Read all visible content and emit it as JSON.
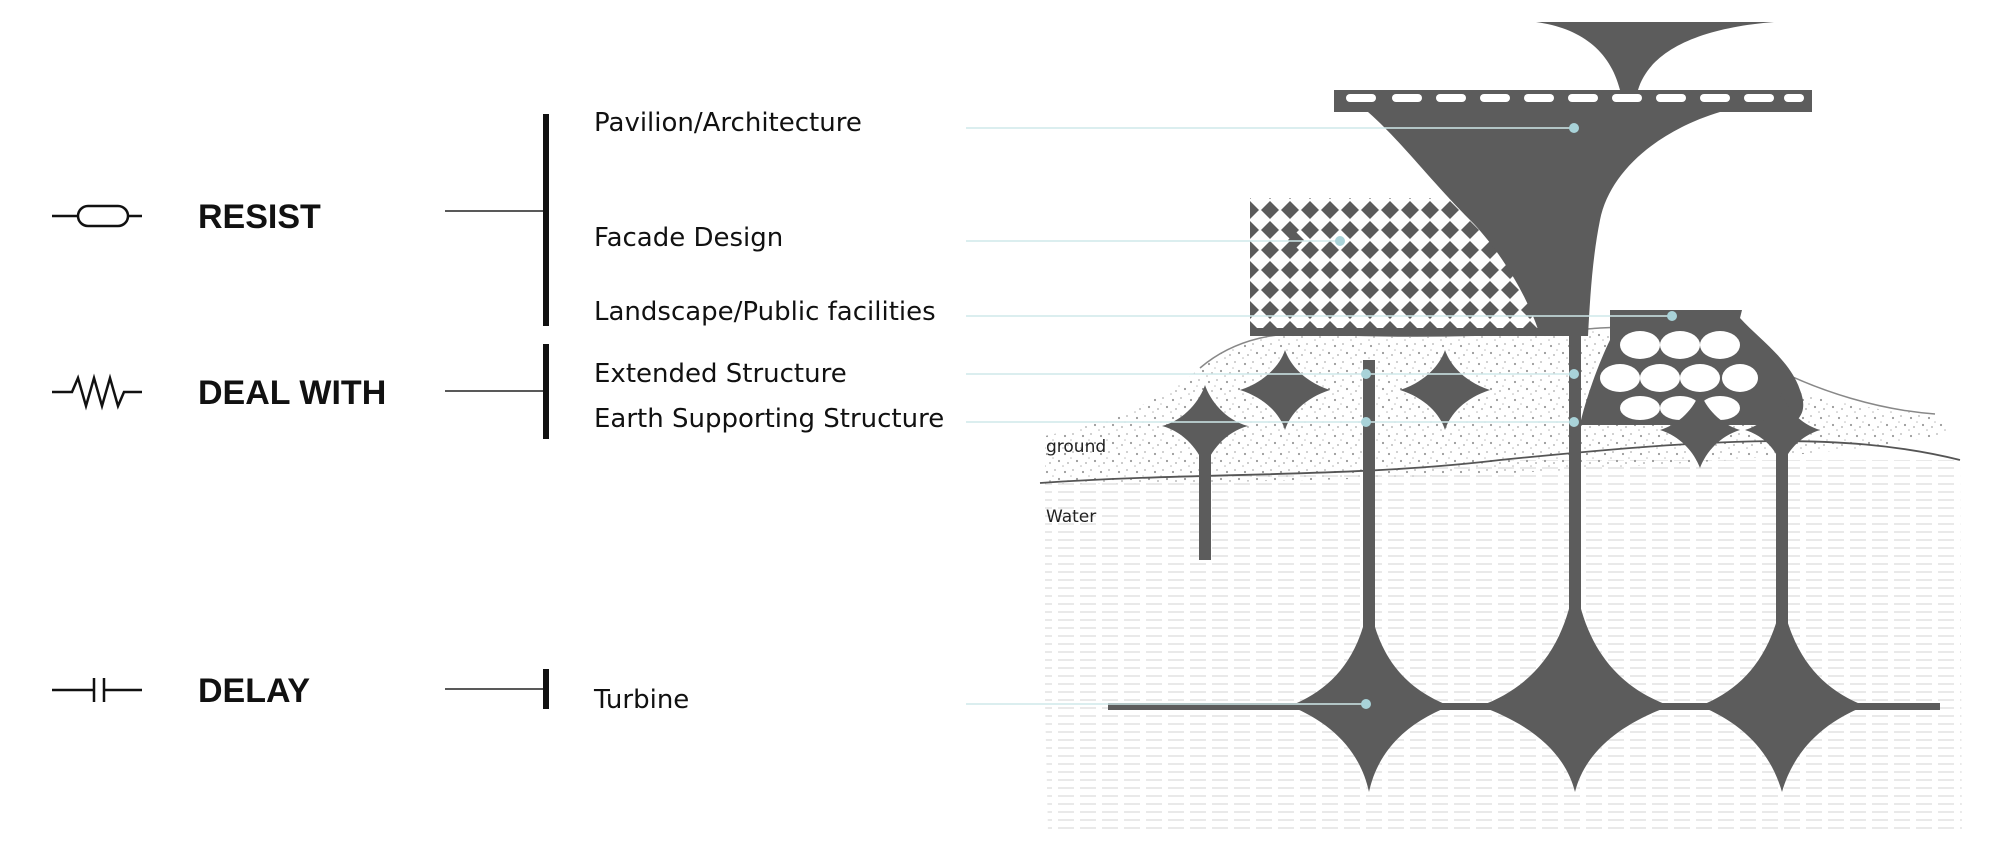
{
  "categories": [
    {
      "label": "RESIST",
      "symbol": "resistor-capsule-icon"
    },
    {
      "label": "DEAL WITH",
      "symbol": "zigzag-resistor-icon"
    },
    {
      "label": "DELAY",
      "symbol": "capacitor-icon"
    }
  ],
  "items": [
    {
      "label": "Pavilion/Architecture"
    },
    {
      "label": "Facade Design"
    },
    {
      "label": "Landscape/Public facilities"
    },
    {
      "label": "Extended Structure"
    },
    {
      "label": "Earth Supporting Structure"
    },
    {
      "label": "Turbine"
    }
  ],
  "zones": {
    "ground": "ground",
    "water": "Water"
  },
  "colors": {
    "structure": "#5c5c5c",
    "leader": "#cfe8ea",
    "dot": "#a9d3d9",
    "ink": "#111111",
    "water_texture": "#e4e4e4"
  }
}
